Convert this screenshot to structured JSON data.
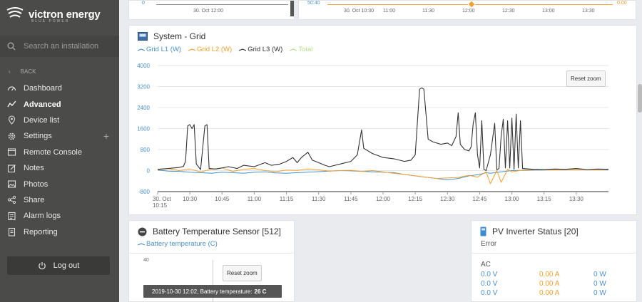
{
  "brand": {
    "name": "victron energy",
    "tagline": "BLUE POWER"
  },
  "sidebar": {
    "search_placeholder": "Search an installation",
    "back_label": "BACK",
    "items": [
      {
        "label": "Dashboard",
        "icon": "dashboard-icon"
      },
      {
        "label": "Advanced",
        "icon": "advanced-icon",
        "active": true
      },
      {
        "label": "Device list",
        "icon": "map-pin-icon"
      },
      {
        "label": "Settings",
        "icon": "gear-icon"
      },
      {
        "label": "Remote Console",
        "icon": "console-icon"
      },
      {
        "label": "Notes",
        "icon": "notes-icon"
      },
      {
        "label": "Photos",
        "icon": "photos-icon"
      },
      {
        "label": "Share",
        "icon": "share-icon"
      },
      {
        "label": "Alarm logs",
        "icon": "alarm-logs-icon"
      },
      {
        "label": "Reporting",
        "icon": "reporting-icon"
      }
    ],
    "settings_plus": "+",
    "logout_label": "Log out"
  },
  "top_left_panel": {
    "y_tick": "0",
    "x_tick": "30. Oct 12:00"
  },
  "top_right_panel": {
    "y_tick": "50:40",
    "x_ticks": [
      "30. Oct 10:30",
      "11:00",
      "11:30",
      "12:00",
      "12:30",
      "13:00",
      "13:30"
    ],
    "right_value": "0.00"
  },
  "grid_panel": {
    "title": "System - Grid",
    "legend": [
      {
        "name": "Grid L1 (W)",
        "color": "#4a90c8"
      },
      {
        "name": "Grid L2 (W)",
        "color": "#f0a030"
      },
      {
        "name": "Grid L3 (W)",
        "color": "#333333"
      },
      {
        "name": "Total",
        "color": "#b9dd8f"
      }
    ],
    "reset_zoom": "Reset zoom"
  },
  "chart_data": {
    "type": "line",
    "title": "System - Grid",
    "y_ticks": [
      "4000",
      "3200",
      "2400",
      "1600",
      "800",
      "0",
      "-800"
    ],
    "x_ticks": [
      "30. Oct\n10:15",
      "10:30",
      "10:45",
      "11:00",
      "11:15",
      "11:30",
      "11:45",
      "12:00",
      "12:15",
      "12:30",
      "12:45",
      "13:00",
      "13:15",
      "13:30"
    ],
    "ylim": [
      -800,
      4000
    ],
    "grid": true,
    "series": [
      {
        "name": "Grid L3 (W)",
        "color": "#333333",
        "values": [
          [
            "10:15",
            50
          ],
          [
            "10:20",
            80
          ],
          [
            "10:25",
            120
          ],
          [
            "10:27",
            160
          ],
          [
            "10:28",
            350
          ],
          [
            "10:29",
            1700
          ],
          [
            "10:30",
            1750
          ],
          [
            "10:31",
            1600
          ],
          [
            "10:32",
            1750
          ],
          [
            "10:33",
            250
          ],
          [
            "10:35",
            40
          ],
          [
            "10:37",
            1700
          ],
          [
            "10:38",
            1750
          ],
          [
            "10:39",
            80
          ],
          [
            "10:42",
            60
          ],
          [
            "10:45",
            100
          ],
          [
            "10:48",
            150
          ],
          [
            "10:52",
            80
          ],
          [
            "10:55",
            200
          ],
          [
            "11:00",
            150
          ],
          [
            "11:05",
            300
          ],
          [
            "11:08",
            200
          ],
          [
            "11:12",
            250
          ],
          [
            "11:15",
            350
          ],
          [
            "11:18",
            500
          ],
          [
            "11:20",
            300
          ],
          [
            "11:22",
            500
          ],
          [
            "11:25",
            700
          ],
          [
            "11:27",
            400
          ],
          [
            "11:30",
            300
          ],
          [
            "11:33",
            200
          ],
          [
            "11:35",
            150
          ],
          [
            "11:40",
            250
          ],
          [
            "11:45",
            350
          ],
          [
            "11:48",
            600
          ],
          [
            "11:50",
            1550
          ],
          [
            "11:51",
            850
          ],
          [
            "11:55",
            650
          ],
          [
            "12:00",
            500
          ],
          [
            "12:05",
            450
          ],
          [
            "12:10",
            350
          ],
          [
            "12:13",
            400
          ],
          [
            "12:14",
            500
          ],
          [
            "12:15",
            600
          ],
          [
            "12:17",
            3100
          ],
          [
            "12:18",
            3150
          ],
          [
            "12:19",
            3100
          ],
          [
            "12:21",
            1200
          ],
          [
            "12:23",
            1100
          ],
          [
            "12:25",
            1050
          ],
          [
            "12:27",
            1000
          ],
          [
            "12:30",
            1050
          ],
          [
            "12:32",
            950
          ],
          [
            "12:34",
            1300
          ],
          [
            "12:35",
            2200
          ],
          [
            "12:36",
            1000
          ],
          [
            "12:38",
            800
          ],
          [
            "12:40",
            750
          ],
          [
            "12:41",
            900
          ],
          [
            "12:42",
            1800
          ],
          [
            "12:43",
            2200
          ],
          [
            "12:44",
            600
          ],
          [
            "12:45",
            100
          ],
          [
            "12:46",
            1900
          ],
          [
            "12:47",
            50
          ],
          [
            "12:48",
            0
          ],
          [
            "12:50",
            600
          ],
          [
            "12:52",
            1800
          ],
          [
            "12:53",
            30
          ],
          [
            "12:54",
            80
          ],
          [
            "12:55",
            1300
          ],
          [
            "12:56",
            1950
          ],
          [
            "12:57",
            100
          ],
          [
            "12:58",
            1900
          ],
          [
            "12:59",
            100
          ],
          [
            "13:00",
            2000
          ],
          [
            "13:01",
            50
          ],
          [
            "13:02",
            2150
          ],
          [
            "13:03",
            100
          ],
          [
            "13:04",
            1900
          ],
          [
            "13:05",
            80
          ],
          [
            "13:10",
            50
          ],
          [
            "13:15",
            40
          ],
          [
            "13:20",
            60
          ],
          [
            "13:25",
            50
          ],
          [
            "13:30",
            80
          ],
          [
            "13:35",
            40
          ],
          [
            "13:40",
            60
          ],
          [
            "13:45",
            50
          ]
        ]
      },
      {
        "name": "Grid L2 (W)",
        "color": "#f0a030",
        "values": [
          [
            "10:15",
            30
          ],
          [
            "10:20",
            80
          ],
          [
            "10:25",
            0
          ],
          [
            "10:30",
            60
          ],
          [
            "10:35",
            -50
          ],
          [
            "10:40",
            50
          ],
          [
            "10:45",
            100
          ],
          [
            "10:50",
            -30
          ],
          [
            "10:55",
            50
          ],
          [
            "11:00",
            80
          ],
          [
            "11:05",
            0
          ],
          [
            "11:10",
            -40
          ],
          [
            "11:15",
            20
          ],
          [
            "11:20",
            10
          ],
          [
            "11:25",
            60
          ],
          [
            "11:30",
            30
          ],
          [
            "11:35",
            -20
          ],
          [
            "11:40",
            0
          ],
          [
            "11:45",
            10
          ],
          [
            "11:50",
            -30
          ],
          [
            "11:55",
            0
          ],
          [
            "12:00",
            -50
          ],
          [
            "12:05",
            -100
          ],
          [
            "12:10",
            -150
          ],
          [
            "12:15",
            -200
          ],
          [
            "12:20",
            -250
          ],
          [
            "12:25",
            -300
          ],
          [
            "12:30",
            -280
          ],
          [
            "12:35",
            -260
          ],
          [
            "12:40",
            -180
          ],
          [
            "12:44",
            -250
          ],
          [
            "12:46",
            -150
          ],
          [
            "12:48",
            -50
          ],
          [
            "12:50",
            -500
          ],
          [
            "12:53",
            0
          ],
          [
            "12:55",
            -450
          ],
          [
            "12:58",
            50
          ],
          [
            "13:00",
            -50
          ],
          [
            "13:05",
            20
          ],
          [
            "13:10",
            40
          ],
          [
            "13:20",
            30
          ],
          [
            "13:30",
            40
          ],
          [
            "13:40",
            30
          ],
          [
            "13:45",
            50
          ]
        ]
      },
      {
        "name": "Grid L1 (W)",
        "color": "#4a90c8",
        "values": [
          [
            "10:15",
            20
          ],
          [
            "10:20",
            -20
          ],
          [
            "10:25",
            -30
          ],
          [
            "10:30",
            -60
          ],
          [
            "10:35",
            -80
          ],
          [
            "10:40",
            -100
          ],
          [
            "10:45",
            -60
          ],
          [
            "10:50",
            -80
          ],
          [
            "10:55",
            -100
          ],
          [
            "11:00",
            -60
          ],
          [
            "11:05",
            -50
          ],
          [
            "11:10",
            -90
          ],
          [
            "11:15",
            -100
          ],
          [
            "11:20",
            -80
          ],
          [
            "11:25",
            -60
          ],
          [
            "11:30",
            -40
          ],
          [
            "11:35",
            -20
          ],
          [
            "11:40",
            0
          ],
          [
            "11:45",
            -10
          ],
          [
            "11:50",
            -30
          ],
          [
            "11:55",
            -50
          ],
          [
            "12:00",
            -60
          ],
          [
            "12:05",
            -80
          ],
          [
            "12:10",
            -150
          ],
          [
            "12:15",
            -200
          ],
          [
            "12:20",
            -250
          ],
          [
            "12:25",
            -300
          ],
          [
            "12:30",
            -350
          ],
          [
            "12:35",
            -300
          ],
          [
            "12:40",
            -200
          ],
          [
            "12:45",
            -150
          ],
          [
            "12:48",
            -80
          ],
          [
            "12:50",
            -100
          ],
          [
            "12:55",
            -50
          ],
          [
            "13:00",
            0
          ],
          [
            "13:10",
            20
          ],
          [
            "13:20",
            30
          ],
          [
            "13:30",
            40
          ],
          [
            "13:45",
            30
          ]
        ]
      }
    ]
  },
  "battery_panel": {
    "title": "Battery Temperature Sensor [512]",
    "legend": "Battery temperature (C)",
    "y_tick": "40",
    "reset_zoom": "Reset zoom",
    "tooltip_prefix": "2019-10-30 12:02, Battery temperature:",
    "tooltip_value": "26 C"
  },
  "pv_panel": {
    "title": "PV Inverter Status [20]",
    "status": "Error",
    "section": "AC",
    "rows": [
      {
        "v": "0.0 V",
        "a": "0.00 A",
        "w": "0 W"
      },
      {
        "v": "0.0 V",
        "a": "0.00 A",
        "w": "0 W"
      },
      {
        "v": "0.0 V",
        "a": "0.00 A",
        "w": "0 W"
      }
    ]
  }
}
